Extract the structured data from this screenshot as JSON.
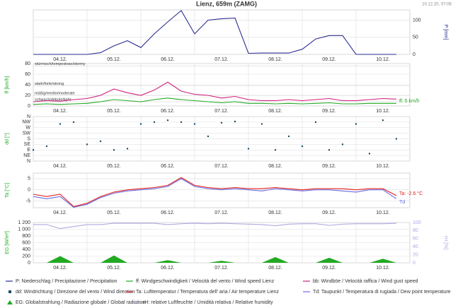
{
  "timestamp": "10.12.20, 07:06",
  "chart_data": [
    {
      "type": "line",
      "title": "Lienz, 659m (ZAMG)",
      "ylabel": "P [mm]",
      "axis_side": "right",
      "categories": [
        null,
        null,
        "04.12.",
        null,
        null,
        null,
        "05.12.",
        null,
        null,
        null,
        "06.12.",
        null,
        null,
        null,
        "07.12.",
        null,
        null,
        null,
        "08.12.",
        null,
        null,
        null,
        "09.12.",
        null,
        null,
        null,
        "10.12.",
        null
      ],
      "ylim": [
        0,
        130
      ],
      "yticks": [
        0,
        50,
        100
      ],
      "grid": true,
      "series": [
        {
          "name": "P: Niederschlag / Precipitazione / Precipitation",
          "color": "#2b2f8f",
          "values": [
            0,
            0,
            0,
            0,
            0,
            5,
            25,
            40,
            20,
            60,
            95,
            128,
            60,
            100,
            104,
            106,
            3,
            4,
            4,
            4,
            15,
            45,
            55,
            55,
            0,
            0,
            0,
            0
          ]
        }
      ]
    },
    {
      "type": "line",
      "ylabel": "ff [km/h]",
      "categories": [
        null,
        null,
        "04.12.",
        null,
        null,
        null,
        "05.12.",
        null,
        null,
        null,
        "06.12.",
        null,
        null,
        null,
        "07.12.",
        null,
        null,
        null,
        "08.12.",
        null,
        null,
        null,
        "09.12.",
        null,
        null,
        null,
        "10.12.",
        null
      ],
      "ylim": [
        0,
        80
      ],
      "yticks": [
        0,
        20,
        40,
        60,
        80
      ],
      "grid": true,
      "bands": [
        {
          "value": 75,
          "label": "stürmisch/tempestoso/stormy"
        },
        {
          "value": 38,
          "label": "stark/forte/strong"
        },
        {
          "value": 20,
          "label": "mäßig/medio/moderate"
        },
        {
          "value": 8,
          "label": "schwach/debole/light"
        }
      ],
      "series": [
        {
          "name": "bb: Windböe / Velocità raffica / Wind gust speed",
          "color": "#d0207a",
          "values": [
            8,
            10,
            9,
            12,
            14,
            20,
            32,
            25,
            20,
            30,
            45,
            28,
            22,
            20,
            15,
            18,
            12,
            10,
            10,
            12,
            10,
            12,
            14,
            10,
            10,
            12,
            14,
            13
          ]
        },
        {
          "name": "ff: Windgeschwindigkeit / Velocità del vento / Wind speed  Lienz",
          "color": "#22aa22",
          "end_label": "ff: 5 km/h",
          "values": [
            3,
            4,
            3,
            4,
            5,
            8,
            12,
            10,
            8,
            12,
            15,
            12,
            10,
            8,
            6,
            8,
            5,
            5,
            4,
            5,
            4,
            5,
            6,
            4,
            4,
            5,
            5,
            5
          ]
        }
      ]
    },
    {
      "type": "scatter",
      "ylabel": "dd [°]",
      "categories": [
        null,
        null,
        "04.12.",
        null,
        null,
        null,
        "05.12.",
        null,
        null,
        null,
        "06.12.",
        null,
        null,
        null,
        "07.12.",
        null,
        null,
        null,
        "08.12.",
        null,
        null,
        null,
        "09.12.",
        null,
        null,
        null,
        "10.12.",
        null
      ],
      "ylim": [
        0,
        360
      ],
      "yticks": [
        {
          "value": 0,
          "label": "N"
        },
        {
          "value": 45,
          "label": "NE"
        },
        {
          "value": 90,
          "label": "E"
        },
        {
          "value": 135,
          "label": "SE"
        },
        {
          "value": 180,
          "label": "S"
        },
        {
          "value": 225,
          "label": "SW"
        },
        {
          "value": 270,
          "label": "W"
        },
        {
          "value": 315,
          "label": "NW"
        },
        {
          "value": 360,
          "label": "N"
        }
      ],
      "grid": true,
      "series": [
        {
          "name": "dd: Windrichtung / Direzione del vento / Wind direction",
          "color": "#1f4e66",
          "values": [
            90,
            120,
            300,
            315,
            135,
            160,
            90,
            100,
            300,
            315,
            330,
            315,
            300,
            200,
            310,
            320,
            100,
            300,
            90,
            200,
            120,
            315,
            90,
            135,
            300,
            60,
            330,
            180
          ]
        }
      ]
    },
    {
      "type": "line",
      "ylabel": "Ta [°C]",
      "categories": [
        null,
        null,
        "04.12.",
        null,
        null,
        null,
        "05.12.",
        null,
        null,
        null,
        "06.12.",
        null,
        null,
        null,
        "07.12.",
        null,
        null,
        null,
        "08.12.",
        null,
        null,
        null,
        "09.12.",
        null,
        null,
        null,
        "10.12.",
        null
      ],
      "ylim": [
        -8,
        7.5
      ],
      "yticks": [
        -5,
        0,
        5
      ],
      "grid": true,
      "series": [
        {
          "name": "Td: Taupunkt / Temperatura di rugiada / Dew point temperature",
          "color": "#6a6ae0",
          "end_label": "Td",
          "values": [
            -3,
            -4,
            -3,
            -7.8,
            -6.5,
            -3.5,
            -1.5,
            -0.5,
            0,
            0.5,
            1.5,
            5,
            1.5,
            0.5,
            0,
            0.5,
            0,
            -0.5,
            0.5,
            0,
            -0.5,
            0,
            0,
            -0.5,
            -1,
            0,
            0,
            -4
          ]
        },
        {
          "name": "Ta: Lufttemperatur / Temperatura dell' aria / Air temperature  Lienz",
          "color": "#e02020",
          "end_label": "Ta: -2.6 °C",
          "values": [
            -2,
            -3,
            -2,
            -7.5,
            -6,
            -3,
            -1,
            0,
            0.5,
            1,
            2,
            5.5,
            2,
            1,
            0.5,
            1,
            0.5,
            0.5,
            1,
            0.5,
            0,
            0.5,
            0.5,
            0.5,
            0,
            0.5,
            0.5,
            -2.6
          ]
        }
      ]
    },
    {
      "type": "area",
      "ylabel": "EG [W/m²]",
      "y2label": "rH [%]",
      "categories": [
        null,
        null,
        "04.12.",
        null,
        null,
        null,
        "05.12.",
        null,
        null,
        null,
        "06.12.",
        null,
        null,
        null,
        "07.12.",
        null,
        null,
        null,
        "08.12.",
        null,
        null,
        null,
        "09.12.",
        null,
        null,
        null,
        "10.12.",
        null
      ],
      "ylim": [
        0,
        1200
      ],
      "yticks": [
        0,
        200,
        400,
        600,
        800,
        {
          "value": 1000,
          "label": "1 000"
        },
        {
          "value": 1200,
          "label": "1 200"
        }
      ],
      "y2lim": [
        0,
        100
      ],
      "y2ticks": [
        0,
        20,
        40,
        60,
        80,
        100
      ],
      "grid": true,
      "series": [
        {
          "name": "EG: Globalstrahlung / Radiazione globale / Global radiation",
          "color": "#22aa22",
          "values": [
            0,
            0,
            200,
            0,
            0,
            0,
            220,
            0,
            0,
            0,
            80,
            0,
            0,
            0,
            60,
            0,
            0,
            0,
            170,
            0,
            0,
            0,
            150,
            0,
            0,
            0,
            120,
            0
          ]
        },
        {
          "name": "rH: relative Luftfeuchte / Umidità relativa / Relative humidity",
          "color": "#b0a8e0",
          "axis": "y2",
          "values": [
            95,
            95,
            85,
            90,
            95,
            95,
            98,
            98,
            98,
            98,
            95,
            97,
            98,
            97,
            98,
            97,
            96,
            95,
            92,
            96,
            97,
            97,
            93,
            96,
            97,
            97,
            97,
            98
          ]
        }
      ]
    }
  ]
}
